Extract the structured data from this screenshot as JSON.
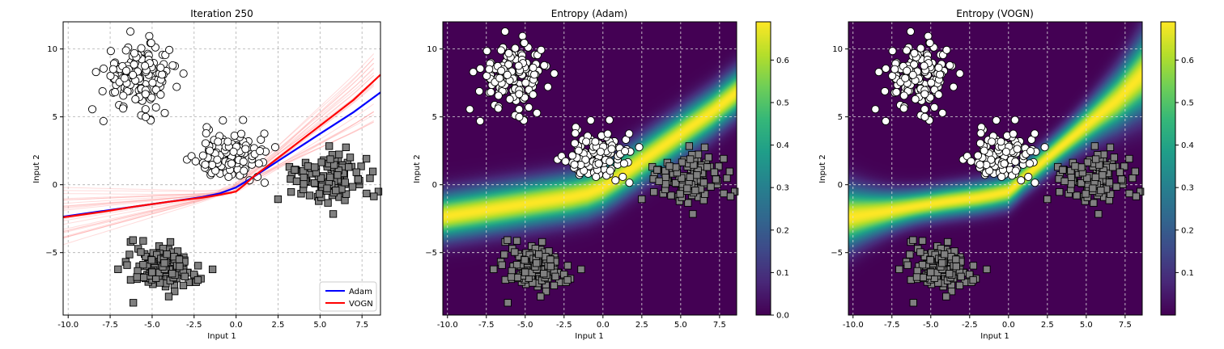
{
  "chart_data": [
    {
      "type": "scatter",
      "title": "Iteration 250",
      "xlabel": "Input 1",
      "ylabel": "Input 2",
      "xlim": [
        -10.3,
        8.6
      ],
      "ylim": [
        -9.6,
        12.0
      ],
      "xticks": [
        -10.0,
        -7.5,
        -5.0,
        -2.5,
        0.0,
        2.5,
        5.0,
        7.5
      ],
      "yticks": [
        -5,
        0,
        5,
        10
      ],
      "grid": true,
      "legend_position": "bottom-right",
      "series": [
        {
          "name": "Adam",
          "color": "#0000ff",
          "x": [
            -10.3,
            -8,
            -6,
            -4,
            -2,
            -1,
            0,
            1,
            2,
            3,
            4,
            5,
            6,
            7,
            8.6
          ],
          "y": [
            -2.35,
            -1.95,
            -1.6,
            -1.25,
            -0.9,
            -0.65,
            -0.2,
            0.55,
            1.35,
            2.15,
            2.95,
            3.75,
            4.55,
            5.35,
            6.8
          ]
        },
        {
          "name": "VOGN",
          "color": "#ff0000",
          "x": [
            -10.3,
            -8,
            -6,
            -4,
            -2,
            -1,
            0,
            0.5,
            1,
            2,
            3,
            4,
            5,
            6,
            7,
            8.6
          ],
          "y": [
            -2.4,
            -2.0,
            -1.6,
            -1.25,
            -0.95,
            -0.75,
            -0.5,
            0.0,
            0.55,
            1.5,
            2.45,
            3.4,
            4.35,
            5.3,
            6.25,
            8.1
          ]
        }
      ],
      "clusters": [
        {
          "marker": "circle",
          "fill": "#ffffff",
          "cx": -5.7,
          "cy": 8.0,
          "sx": 1.1,
          "sy": 1.2,
          "n": 150
        },
        {
          "marker": "circle",
          "fill": "#ffffff",
          "cx": -0.3,
          "cy": 2.1,
          "sx": 1.1,
          "sy": 1.0,
          "n": 120
        },
        {
          "marker": "square",
          "fill": "#808080",
          "cx": 5.3,
          "cy": 0.4,
          "sx": 1.1,
          "sy": 0.9,
          "n": 120
        },
        {
          "marker": "square",
          "fill": "#808080",
          "cx": -4.3,
          "cy": -6.2,
          "sx": 1.0,
          "sy": 0.8,
          "n": 150
        }
      ]
    },
    {
      "type": "heatmap",
      "title": "Entropy (Adam)",
      "xlabel": "Input 1",
      "ylabel": "Input 2",
      "xlim": [
        -10.3,
        8.6
      ],
      "ylim": [
        -9.6,
        12.0
      ],
      "xticks": [
        -10.0,
        -7.5,
        -5.0,
        -2.5,
        0.0,
        2.5,
        5.0,
        7.5
      ],
      "yticks": [
        -5,
        0,
        5,
        10
      ],
      "colormap": "viridis",
      "colorbar_range": [
        0.0,
        0.69
      ],
      "colorbar_ticks": [
        "0.0",
        "0.1",
        "0.2",
        "0.3",
        "0.4",
        "0.5",
        "0.6"
      ],
      "peak_entropy": 0.69
    },
    {
      "type": "heatmap",
      "title": "Entropy (VOGN)",
      "xlabel": "Input 1",
      "ylabel": "Input 2",
      "xlim": [
        -10.3,
        8.6
      ],
      "ylim": [
        -9.6,
        12.0
      ],
      "xticks": [
        -10.0,
        -7.5,
        -5.0,
        -2.5,
        0.0,
        2.5,
        5.0,
        7.5
      ],
      "yticks": [
        -5,
        0,
        5,
        10
      ],
      "colormap": "viridis",
      "colorbar_range": [
        0.0,
        0.69
      ],
      "colorbar_ticks": [
        "0.1",
        "0.2",
        "0.3",
        "0.4",
        "0.5",
        "0.6"
      ],
      "peak_entropy": 0.69
    }
  ]
}
